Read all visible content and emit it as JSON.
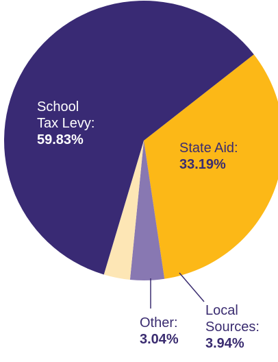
{
  "chart_data": {
    "type": "pie",
    "title": "",
    "start_angle_deg": 52,
    "direction": "clockwise",
    "slices": [
      {
        "name_lines": [
          "State Aid:"
        ],
        "value_text": "33.19%",
        "value": 33.19,
        "color": "#fcb817",
        "label_color": "#3a2c70",
        "outer_label": false
      },
      {
        "name_lines": [
          "Local",
          "Sources:"
        ],
        "value_text": "3.94%",
        "value": 3.94,
        "color": "#8878b2",
        "label_color": "#3a2c70",
        "outer_label": true
      },
      {
        "name_lines": [
          "Other:"
        ],
        "value_text": "3.04%",
        "value": 3.04,
        "color": "#fde6b5",
        "label_color": "#3a2c70",
        "outer_label": true
      },
      {
        "name_lines": [
          "School",
          "Tax Levy:"
        ],
        "value_text": "59.83%",
        "value": 59.83,
        "color": "#392a74",
        "label_color": "#ffffff",
        "outer_label": false
      }
    ],
    "leader_line_color": "#3a2c70"
  }
}
